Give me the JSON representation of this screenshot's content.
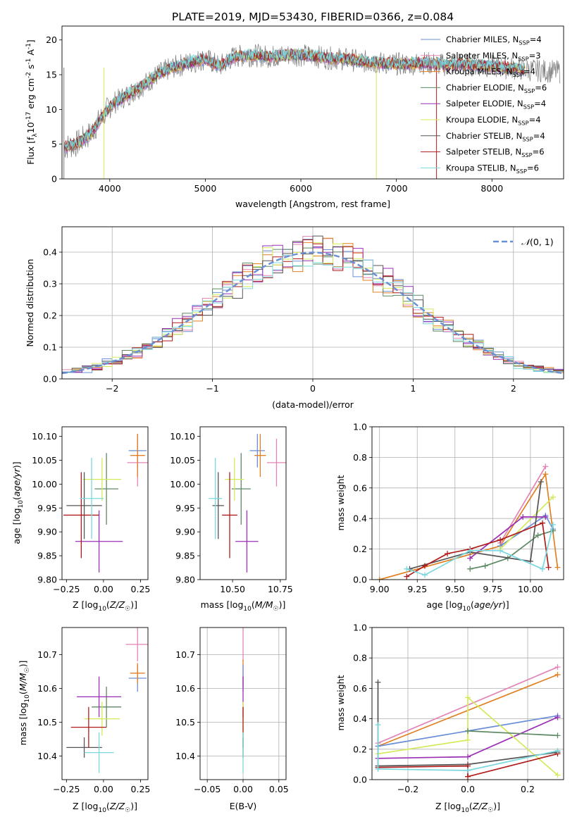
{
  "figure_title": "PLATE=2019, MJD=53430, FIBERID=0366, z=0.084",
  "colors": {
    "chabrier_miles": "#6a8fd6",
    "salpeter_miles": "#e385b5",
    "kroupa_miles": "#e08022",
    "chabrier_elodie": "#5d8a63",
    "salpeter_elodie": "#9a2fb5",
    "kroupa_elodie": "#d4ea5a",
    "chabrier_stelib": "#555555",
    "salpeter_stelib": "#b01c1c",
    "kroupa_stelib": "#7ad8de"
  },
  "chart_data": [
    {
      "id": "spectrum",
      "type": "line",
      "xlabel": "wavelength [Angstrom, rest frame]",
      "ylabel": "Flux [f",
      "ylabel_sub": "λ",
      "ylabel_rest": "10",
      "ylabel_sup1": "-17",
      "ylabel_mid": " erg cm",
      "ylabel_sup2": "-2",
      "ylabel_mid2": " s",
      "ylabel_sup3": "-1",
      "ylabel_mid3": " A",
      "ylabel_sup4": "-1",
      "ylabel_end": "]",
      "xlim": [
        3500,
        8750
      ],
      "ylim": [
        0,
        22
      ],
      "xticks": [
        4000,
        5000,
        6000,
        7000,
        8000
      ],
      "yticks": [
        0,
        5,
        10,
        15,
        20
      ],
      "continuum": [
        [
          3500,
          4.5
        ],
        [
          3650,
          5
        ],
        [
          3800,
          6.5
        ],
        [
          3950,
          9.5
        ],
        [
          4050,
          11
        ],
        [
          4200,
          12.2
        ],
        [
          4350,
          13.5
        ],
        [
          4500,
          15
        ],
        [
          4650,
          16
        ],
        [
          4800,
          16.6
        ],
        [
          5000,
          17.3
        ],
        [
          5150,
          16.2
        ],
        [
          5300,
          17.6
        ],
        [
          5500,
          17.8
        ],
        [
          5700,
          17.6
        ],
        [
          5900,
          17.9
        ],
        [
          6100,
          17.7
        ],
        [
          6300,
          17.4
        ],
        [
          6500,
          17.2
        ],
        [
          6700,
          16.8
        ],
        [
          6900,
          16.6
        ],
        [
          7100,
          16.5
        ],
        [
          7300,
          16.7
        ],
        [
          7500,
          16.4
        ],
        [
          7700,
          16.5
        ],
        [
          8000,
          16.2
        ],
        [
          8300,
          15.8
        ],
        [
          8700,
          15.4
        ]
      ],
      "series": [
        {
          "name": "Chabrier MILES, N",
          "sub": "SSP",
          "count": "=4"
        },
        {
          "name": "Salpeter MILES, N",
          "sub": "SSP",
          "count": "=3"
        },
        {
          "name": "Kroupa MILES, N",
          "sub": "SSP",
          "count": "=4"
        },
        {
          "name": "Chabrier ELODIE, N",
          "sub": "SSP",
          "count": "=6"
        },
        {
          "name": "Salpeter ELODIE, N",
          "sub": "SSP",
          "count": "=4"
        },
        {
          "name": "Kroupa ELODIE, N",
          "sub": "SSP",
          "count": "=4"
        },
        {
          "name": "Chabrier STELIB, N",
          "sub": "SSP",
          "count": "=4"
        },
        {
          "name": "Salpeter STELIB, N",
          "sub": "SSP",
          "count": "=6"
        },
        {
          "name": "Kroupa STELIB, N",
          "sub": "SSP",
          "count": "=6"
        }
      ],
      "legend_position": "top-right"
    },
    {
      "id": "residuals",
      "type": "histogram",
      "xlabel": "(data-model)/error",
      "ylabel": "Normed distribution",
      "xlim": [
        -2.5,
        2.5
      ],
      "ylim": [
        0,
        0.48
      ],
      "xticks": [
        -2,
        -1,
        0,
        1,
        2
      ],
      "yticks": [
        0.0,
        0.1,
        0.2,
        0.3,
        0.4
      ],
      "bin_width": 0.1,
      "gaussian": {
        "mean": 0,
        "sigma": 1,
        "label": "N(0, 1)"
      },
      "grid": true,
      "legend_position": "top-right"
    },
    {
      "id": "age_vs_Z",
      "type": "errorbar",
      "xlabel": "Z [log10(Z/Z☉)]",
      "ylabel": "age  [log10(age/yr)]",
      "xlim": [
        -0.28,
        0.3
      ],
      "ylim": [
        9.8,
        10.12
      ],
      "xticks": [
        -0.25,
        0.0,
        0.25
      ],
      "yticks": [
        9.8,
        9.85,
        9.9,
        9.95,
        10.0,
        10.05,
        10.1
      ],
      "points": [
        {
          "series": "chabrier_miles",
          "x": 0.23,
          "y": 10.07,
          "xerr": 0.06,
          "yerr": 0.035
        },
        {
          "series": "salpeter_miles",
          "x": 0.23,
          "y": 10.045,
          "xerr": 0.07,
          "yerr": 0.05
        },
        {
          "series": "kroupa_miles",
          "x": 0.23,
          "y": 10.06,
          "xerr": 0.05,
          "yerr": 0.045
        },
        {
          "series": "chabrier_elodie",
          "x": 0.02,
          "y": 9.99,
          "xerr": 0.08,
          "yerr": 0.075
        },
        {
          "series": "salpeter_elodie",
          "x": -0.03,
          "y": 9.88,
          "xerr": 0.16,
          "yerr": 0.065
        },
        {
          "series": "kroupa_elodie",
          "x": -0.01,
          "y": 10.01,
          "xerr": 0.13,
          "yerr": 0.045
        },
        {
          "series": "chabrier_stelib",
          "x": -0.13,
          "y": 9.955,
          "xerr": 0.12,
          "yerr": 0.07
        },
        {
          "series": "salpeter_stelib",
          "x": -0.15,
          "y": 9.935,
          "xerr": 0.12,
          "yerr": 0.09
        },
        {
          "series": "kroupa_stelib",
          "x": -0.08,
          "y": 9.97,
          "xerr": 0.08,
          "yerr": 0.085
        }
      ]
    },
    {
      "id": "age_vs_mass",
      "type": "errorbar",
      "xlabel": "mass [log10(M/M☉)]",
      "xlim": [
        10.33,
        10.78
      ],
      "ylim": [
        9.8,
        10.12
      ],
      "xticks": [
        10.5,
        10.75
      ],
      "yticks": [
        9.8,
        9.85,
        9.9,
        9.95,
        10.0,
        10.05,
        10.1
      ],
      "points": [
        {
          "series": "chabrier_miles",
          "x": 10.63,
          "y": 10.07,
          "xerr": 0.04,
          "yerr": 0.035
        },
        {
          "series": "salpeter_miles",
          "x": 10.73,
          "y": 10.045,
          "xerr": 0.05,
          "yerr": 0.05
        },
        {
          "series": "kroupa_miles",
          "x": 10.645,
          "y": 10.06,
          "xerr": 0.03,
          "yerr": 0.045
        },
        {
          "series": "chabrier_elodie",
          "x": 10.545,
          "y": 9.99,
          "xerr": 0.05,
          "yerr": 0.075
        },
        {
          "series": "salpeter_elodie",
          "x": 10.575,
          "y": 9.88,
          "xerr": 0.06,
          "yerr": 0.065
        },
        {
          "series": "kroupa_elodie",
          "x": 10.51,
          "y": 10.01,
          "xerr": 0.05,
          "yerr": 0.045
        },
        {
          "series": "chabrier_stelib",
          "x": 10.425,
          "y": 9.955,
          "xerr": 0.03,
          "yerr": 0.07
        },
        {
          "series": "salpeter_stelib",
          "x": 10.485,
          "y": 9.935,
          "xerr": 0.04,
          "yerr": 0.09
        },
        {
          "series": "kroupa_stelib",
          "x": 10.41,
          "y": 9.97,
          "xerr": 0.035,
          "yerr": 0.085
        }
      ]
    },
    {
      "id": "weights_vs_age",
      "type": "line",
      "xlabel": "age  [log10(age/yr)]",
      "ylabel": "mass weight",
      "xlim": [
        8.95,
        10.22
      ],
      "ylim": [
        0,
        1.0
      ],
      "xticks": [
        9.0,
        9.25,
        9.5,
        9.75,
        10.0
      ],
      "yticks": [
        0.0,
        0.2,
        0.4,
        0.6,
        0.8,
        1.0
      ],
      "grid": true,
      "series": [
        {
          "series": "kroupa_miles",
          "x": [
            9.0,
            9.8,
            10.1,
            10.18
          ],
          "y": [
            0.0,
            0.22,
            0.69,
            0.08
          ]
        },
        {
          "series": "salpeter_miles",
          "x": [
            9.8,
            10.1
          ],
          "y": [
            0.24,
            0.74
          ]
        },
        {
          "series": "chabrier_miles",
          "x": [
            9.8,
            10.1,
            10.15
          ],
          "y": [
            0.22,
            0.42,
            0.33
          ]
        },
        {
          "series": "kroupa_elodie",
          "x": [
            9.8,
            10.15
          ],
          "y": [
            0.2,
            0.54
          ]
        },
        {
          "series": "salpeter_elodie",
          "x": [
            9.6,
            9.95,
            10.1
          ],
          "y": [
            0.14,
            0.41,
            0.41
          ]
        },
        {
          "series": "chabrier_elodie",
          "x": [
            9.6,
            9.7,
            9.85,
            10.05,
            10.15
          ],
          "y": [
            0.07,
            0.09,
            0.14,
            0.29,
            0.32
          ]
        },
        {
          "series": "chabrier_stelib",
          "x": [
            9.2,
            9.6,
            10.0,
            10.07
          ],
          "y": [
            0.07,
            0.18,
            0.12,
            0.64
          ]
        },
        {
          "series": "salpeter_stelib",
          "x": [
            9.18,
            9.3,
            9.45,
            9.6,
            9.8,
            10.08,
            10.12
          ],
          "y": [
            0.02,
            0.09,
            0.17,
            0.2,
            0.26,
            0.37,
            0.08
          ]
        },
        {
          "series": "kroupa_stelib",
          "x": [
            9.18,
            9.3,
            9.6,
            9.8,
            10.08,
            10.15
          ],
          "y": [
            0.07,
            0.03,
            0.19,
            0.19,
            0.07,
            0.36
          ]
        }
      ]
    },
    {
      "id": "mass_vs_Z",
      "type": "errorbar",
      "xlabel": "Z [log10(Z/Z☉)]",
      "ylabel": "mass [log10(M/M☉)]",
      "xlim": [
        -0.28,
        0.3
      ],
      "ylim": [
        10.33,
        10.78
      ],
      "xticks": [
        -0.25,
        0.0,
        0.25
      ],
      "yticks": [
        10.4,
        10.5,
        10.6,
        10.7
      ],
      "points": [
        {
          "series": "chabrier_miles",
          "x": 0.23,
          "y": 10.63,
          "xerr": 0.06,
          "yerr": 0.04
        },
        {
          "series": "salpeter_miles",
          "x": 0.23,
          "y": 10.73,
          "xerr": 0.08,
          "yerr": 0.05
        },
        {
          "series": "kroupa_miles",
          "x": 0.23,
          "y": 10.645,
          "xerr": 0.05,
          "yerr": 0.03
        },
        {
          "series": "chabrier_elodie",
          "x": 0.02,
          "y": 10.545,
          "xerr": 0.1,
          "yerr": 0.06
        },
        {
          "series": "salpeter_elodie",
          "x": -0.03,
          "y": 10.575,
          "xerr": 0.15,
          "yerr": 0.06
        },
        {
          "series": "kroupa_elodie",
          "x": -0.01,
          "y": 10.51,
          "xerr": 0.12,
          "yerr": 0.05
        },
        {
          "series": "chabrier_stelib",
          "x": -0.13,
          "y": 10.425,
          "xerr": 0.12,
          "yerr": 0.03
        },
        {
          "series": "salpeter_stelib",
          "x": -0.1,
          "y": 10.485,
          "xerr": 0.12,
          "yerr": 0.06
        },
        {
          "series": "kroupa_stelib",
          "x": -0.03,
          "y": 10.41,
          "xerr": 0.1,
          "yerr": 0.06
        }
      ]
    },
    {
      "id": "mass_vs_ebv",
      "type": "errorbar",
      "xlabel": "E(B-V)",
      "xlim": [
        -0.06,
        0.06
      ],
      "ylim": [
        10.33,
        10.78
      ],
      "xticks": [
        -0.05,
        0.0,
        0.05
      ],
      "yticks": [
        10.4,
        10.5,
        10.6,
        10.7
      ],
      "points": [
        {
          "series": "salpeter_miles",
          "x": 0.0,
          "y": 10.73,
          "yerr": 0.05
        },
        {
          "series": "kroupa_miles",
          "x": 0.0,
          "y": 10.645,
          "yerr": 0.04
        },
        {
          "series": "chabrier_miles",
          "x": 0.0,
          "y": 10.63,
          "yerr": 0.04
        },
        {
          "series": "salpeter_elodie",
          "x": 0.0,
          "y": 10.575,
          "yerr": 0.06
        },
        {
          "series": "kroupa_elodie",
          "x": 0.0,
          "y": 10.51,
          "yerr": 0.05
        },
        {
          "series": "salpeter_stelib",
          "x": 0.0,
          "y": 10.485,
          "yerr": 0.06
        },
        {
          "series": "chabrier_stelib",
          "x": 0.0,
          "y": 10.425,
          "yerr": 0.03
        },
        {
          "series": "kroupa_stelib",
          "x": 0.0,
          "y": 10.41,
          "yerr": 0.06
        }
      ]
    },
    {
      "id": "weights_vs_Z",
      "type": "line",
      "xlabel": "Z [log10(Z/Z☉)]",
      "ylabel": "mass weight",
      "xlim": [
        -0.32,
        0.32
      ],
      "ylim": [
        0,
        1.0
      ],
      "xticks": [
        -0.2,
        0.0,
        0.2
      ],
      "yticks": [
        0.0,
        0.2,
        0.4,
        0.6,
        0.8,
        1.0
      ],
      "grid": true,
      "series": [
        {
          "series": "salpeter_miles",
          "x": [
            -0.3,
            0.3
          ],
          "y": [
            0.24,
            0.74
          ]
        },
        {
          "series": "kroupa_miles",
          "x": [
            -0.3,
            0.3
          ],
          "y": [
            0.22,
            0.69
          ]
        },
        {
          "series": "chabrier_miles",
          "x": [
            -0.3,
            0.0,
            0.3
          ],
          "y": [
            0.22,
            0.32,
            0.42
          ]
        },
        {
          "series": "salpeter_elodie",
          "x": [
            -0.3,
            0.0,
            0.3
          ],
          "y": [
            0.14,
            0.15,
            0.41
          ]
        },
        {
          "series": "kroupa_elodie",
          "x": [
            -0.3,
            0.0,
            0.0,
            0.3
          ],
          "y": [
            0.17,
            0.26,
            0.54,
            0.03
          ]
        },
        {
          "series": "chabrier_elodie",
          "x": [
            0.0,
            0.3
          ],
          "y": [
            0.32,
            0.29
          ]
        },
        {
          "series": "chabrier_stelib",
          "x": [
            -0.3,
            -0.3,
            0.0,
            0.3
          ],
          "y": [
            0.64,
            0.09,
            0.1,
            0.18
          ]
        },
        {
          "series": "salpeter_stelib",
          "x": [
            -0.3,
            0.0,
            0.0,
            0.3
          ],
          "y": [
            0.08,
            0.09,
            0.02,
            0.17
          ]
        },
        {
          "series": "kroupa_stelib",
          "x": [
            -0.3,
            -0.3,
            0.0,
            0.3
          ],
          "y": [
            0.36,
            0.07,
            0.06,
            0.19
          ]
        }
      ]
    }
  ]
}
